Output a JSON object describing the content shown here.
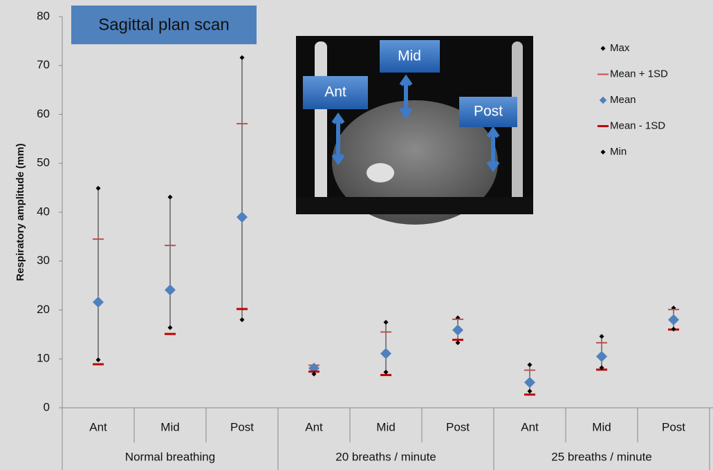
{
  "chart_data": {
    "type": "stock",
    "title": "Sagittal plan scan",
    "y_label": "Respiratory amplitude (mm)",
    "categories": [
      "Ant",
      "Mid",
      "Post",
      "Ant",
      "Mid",
      "Post",
      "Ant",
      "Mid",
      "Post"
    ],
    "groups": [
      "Normal breathing",
      "20 breaths / minute",
      "25 breaths / minute"
    ],
    "series": [
      {
        "name": "Max",
        "color": "#000000",
        "marker": "diamond",
        "values": [
          44.9,
          43.1,
          71.6,
          8.5,
          17.5,
          18.4,
          8.8,
          14.6,
          20.4
        ]
      },
      {
        "name": "Mean + 1SD",
        "color": "#c0504d",
        "marker": "dash",
        "values": [
          34.5,
          33.2,
          58.1,
          8.7,
          15.5,
          18.1,
          7.7,
          13.3,
          20.1
        ]
      },
      {
        "name": "Mean",
        "color": "#4f81bd",
        "marker": "big-diamond",
        "values": [
          21.6,
          24.1,
          39.0,
          8.1,
          11.1,
          15.9,
          5.2,
          10.5,
          18.0
        ]
      },
      {
        "name": "Mean - 1SD",
        "color": "#c00000",
        "marker": "thick-dash",
        "values": [
          8.9,
          15.1,
          20.2,
          7.4,
          6.7,
          13.9,
          2.7,
          7.8,
          16.0
        ]
      },
      {
        "name": "Min",
        "color": "#000000",
        "marker": "diamond",
        "values": [
          9.8,
          16.4,
          18.0,
          6.9,
          7.3,
          13.3,
          3.4,
          8.2,
          16.1
        ]
      }
    ],
    "ylim": [
      0,
      80
    ],
    "yticks": [
      0,
      10,
      20,
      30,
      40,
      50,
      60,
      70,
      80
    ],
    "inset_labels": [
      "Ant",
      "Mid",
      "Post"
    ]
  }
}
